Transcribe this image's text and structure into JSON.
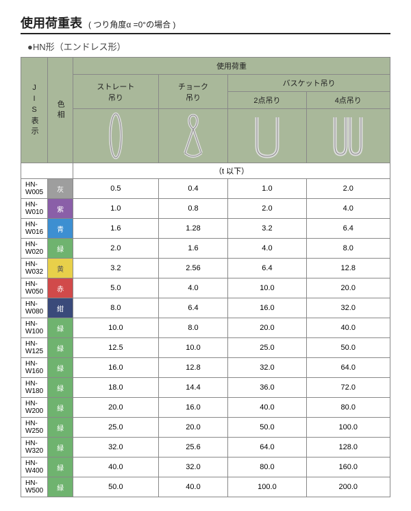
{
  "title": "使用荷重表",
  "title_sub": "( つり角度α =0°の場合 )",
  "subtitle": "●HN形（エンドレス形）",
  "headers": {
    "jis": "JIS表示",
    "color": "色相",
    "load": "使用荷重",
    "straight": "ストレート\n吊り",
    "choke": "チョーク\n吊り",
    "basket": "バスケット吊り",
    "two_pt": "2点吊り",
    "four_pt": "4点吊り",
    "unit": "（t 以下）"
  },
  "color_map": {
    "灰": "#9e9e9e",
    "紫": "#8a5fa8",
    "青": "#3d8fd1",
    "緑": "#6fb36f",
    "黄": "#e8d04a",
    "赤": "#d14a4a",
    "紺": "#3a4a7a"
  },
  "rows": [
    {
      "jis": "HN-W005",
      "c": "灰",
      "v": [
        "0.5",
        "0.4",
        "1.0",
        "2.0"
      ]
    },
    {
      "jis": "HN-W010",
      "c": "紫",
      "v": [
        "1.0",
        "0.8",
        "2.0",
        "4.0"
      ]
    },
    {
      "jis": "HN-W016",
      "c": "青",
      "v": [
        "1.6",
        "1.28",
        "3.2",
        "6.4"
      ]
    },
    {
      "jis": "HN-W020",
      "c": "緑",
      "v": [
        "2.0",
        "1.6",
        "4.0",
        "8.0"
      ]
    },
    {
      "jis": "HN-W032",
      "c": "黄",
      "v": [
        "3.2",
        "2.56",
        "6.4",
        "12.8"
      ]
    },
    {
      "jis": "HN-W050",
      "c": "赤",
      "v": [
        "5.0",
        "4.0",
        "10.0",
        "20.0"
      ]
    },
    {
      "jis": "HN-W080",
      "c": "紺",
      "v": [
        "8.0",
        "6.4",
        "16.0",
        "32.0"
      ]
    },
    {
      "jis": "HN-W100",
      "c": "緑",
      "v": [
        "10.0",
        "8.0",
        "20.0",
        "40.0"
      ]
    },
    {
      "jis": "HN-W125",
      "c": "緑",
      "v": [
        "12.5",
        "10.0",
        "25.0",
        "50.0"
      ]
    },
    {
      "jis": "HN-W160",
      "c": "緑",
      "v": [
        "16.0",
        "12.8",
        "32.0",
        "64.0"
      ]
    },
    {
      "jis": "HN-W180",
      "c": "緑",
      "v": [
        "18.0",
        "14.4",
        "36.0",
        "72.0"
      ]
    },
    {
      "jis": "HN-W200",
      "c": "緑",
      "v": [
        "20.0",
        "16.0",
        "40.0",
        "80.0"
      ]
    },
    {
      "jis": "HN-W250",
      "c": "緑",
      "v": [
        "25.0",
        "20.0",
        "50.0",
        "100.0"
      ]
    },
    {
      "jis": "HN-W320",
      "c": "緑",
      "v": [
        "32.0",
        "25.6",
        "64.0",
        "128.0"
      ]
    },
    {
      "jis": "HN-W400",
      "c": "緑",
      "v": [
        "40.0",
        "32.0",
        "80.0",
        "160.0"
      ]
    },
    {
      "jis": "HN-W500",
      "c": "緑",
      "v": [
        "50.0",
        "40.0",
        "100.0",
        "200.0"
      ]
    }
  ],
  "yellow_text_color": "#555"
}
